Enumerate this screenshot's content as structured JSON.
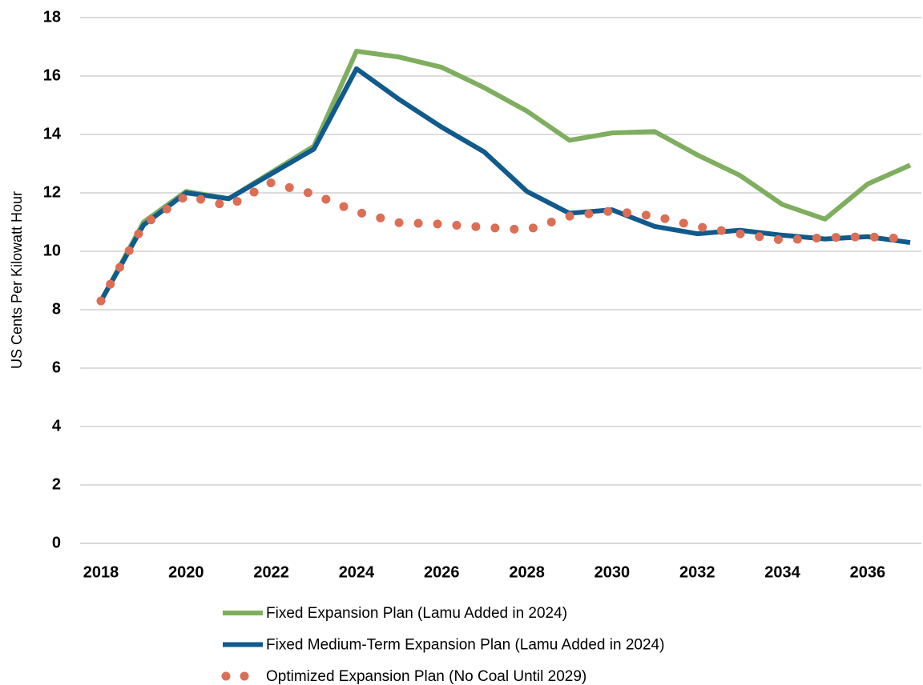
{
  "chart_data": {
    "type": "line",
    "y_label": "US Cents Per Kilowatt Hour",
    "x": [
      2018,
      2019,
      2020,
      2021,
      2022,
      2023,
      2024,
      2025,
      2026,
      2027,
      2028,
      2029,
      2030,
      2031,
      2032,
      2033,
      2034,
      2035,
      2036,
      2037
    ],
    "xlim": [
      2018,
      2037
    ],
    "xticks": [
      2018,
      2020,
      2022,
      2024,
      2026,
      2028,
      2030,
      2032,
      2034,
      2036
    ],
    "ylim": [
      0,
      18
    ],
    "yticks": [
      0,
      2,
      4,
      6,
      8,
      10,
      12,
      14,
      16,
      18
    ],
    "grid": true,
    "legend": "bottom",
    "series": [
      {
        "name": "Fixed Expansion Plan (Lamu Added in 2024)",
        "color": "#7fae5f",
        "dash": "solid",
        "values": [
          8.3,
          11.0,
          12.05,
          11.8,
          12.7,
          13.6,
          16.85,
          16.65,
          16.3,
          15.6,
          14.8,
          13.8,
          14.05,
          14.1,
          13.3,
          12.6,
          11.6,
          11.1,
          12.3,
          12.95
        ]
      },
      {
        "name": "Fixed Medium-Term Expansion Plan (Lamu Added in 2024)",
        "color": "#105a8c",
        "dash": "solid",
        "values": [
          8.3,
          10.9,
          12.0,
          11.8,
          12.65,
          13.5,
          16.25,
          15.2,
          14.25,
          13.4,
          12.05,
          11.3,
          11.42,
          10.85,
          10.6,
          10.72,
          10.55,
          10.42,
          10.5,
          10.3
        ]
      },
      {
        "name": "Optimized Expansion Plan (No Coal Until 2029)",
        "color": "#dc6e55",
        "dash": "dotted",
        "values": [
          8.3,
          10.9,
          11.9,
          11.55,
          12.35,
          11.95,
          11.35,
          10.98,
          10.93,
          10.82,
          10.73,
          11.2,
          11.38,
          11.2,
          10.85,
          10.6,
          10.38,
          10.47,
          10.5,
          10.42
        ]
      }
    ]
  }
}
